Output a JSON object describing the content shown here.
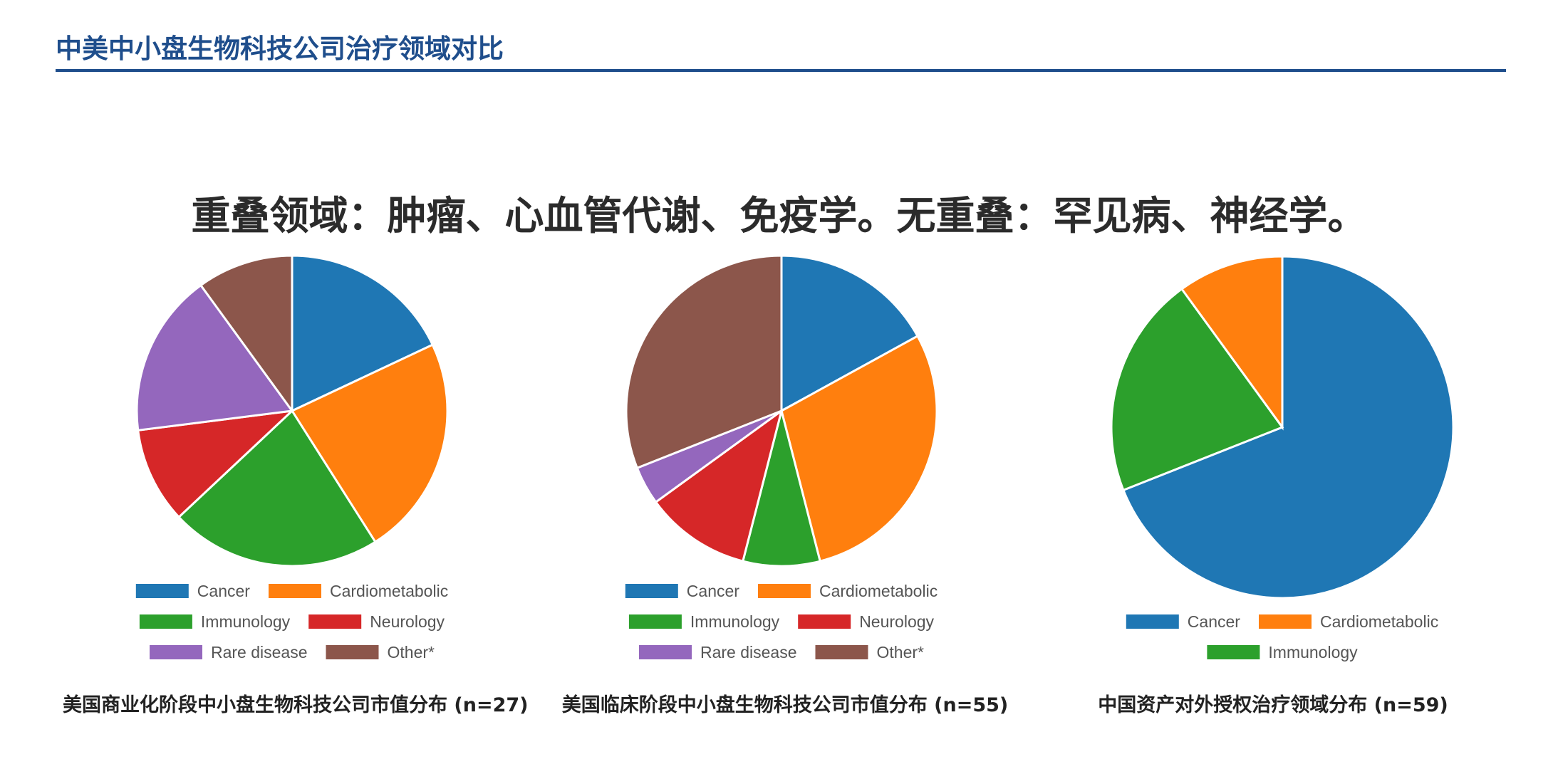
{
  "page": {
    "title": "中美中小盘生物科技公司治疗领域对比",
    "headline": "重叠领域：肿瘤、心血管代谢、免疫学。无重叠：罕见病、神经学。"
  },
  "colors": {
    "Cancer": "#1f77b4",
    "Cardiometabolic": "#ff7f0e",
    "Immunology": "#2ca02c",
    "Neurology": "#d62728",
    "Rare disease": "#9467bd",
    "Other*": "#8c564b",
    "title": "#1f4e8c"
  },
  "chart_data": [
    {
      "type": "pie",
      "caption": "美国商业化阶段中小盘生物科技公司市值分布 (n=27)",
      "labels": [
        "Cancer",
        "Cardiometabolic",
        "Immunology",
        "Neurology",
        "Rare disease",
        "Other*"
      ],
      "values": [
        18,
        23,
        22,
        10,
        17,
        10
      ],
      "legend_order": [
        "Cancer",
        "Cardiometabolic",
        "Immunology",
        "Neurology",
        "Rare disease",
        "Other*"
      ],
      "start": "top",
      "direction": "clockwise",
      "legend": "bottom"
    },
    {
      "type": "pie",
      "caption": "美国临床阶段中小盘生物科技公司市值分布 (n=55)",
      "labels": [
        "Cancer",
        "Cardiometabolic",
        "Immunology",
        "Neurology",
        "Rare disease",
        "Other*"
      ],
      "values": [
        17,
        29,
        8,
        11,
        4,
        31
      ],
      "legend_order": [
        "Cancer",
        "Cardiometabolic",
        "Immunology",
        "Neurology",
        "Rare disease",
        "Other*"
      ],
      "start": "top",
      "direction": "clockwise",
      "legend": "bottom"
    },
    {
      "type": "pie",
      "caption": "中国资产对外授权治疗领域分布 (n=59)",
      "labels": [
        "Cancer",
        "Immunology",
        "Cardiometabolic"
      ],
      "values": [
        69,
        21,
        10
      ],
      "legend_order": [
        "Cancer",
        "Cardiometabolic",
        "Immunology"
      ],
      "start": "top",
      "direction": "clockwise",
      "legend": "bottom"
    }
  ]
}
